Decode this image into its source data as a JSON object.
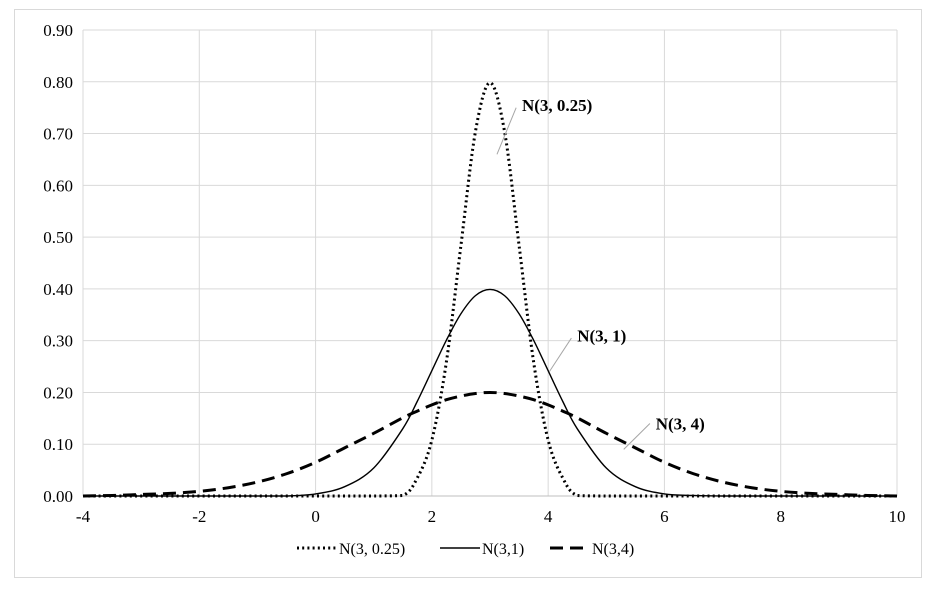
{
  "chart_data": {
    "type": "line",
    "title": "",
    "xlabel": "",
    "ylabel": "",
    "xlim": [
      -4,
      10
    ],
    "ylim": [
      0,
      0.9
    ],
    "x_ticks": [
      -4,
      -2,
      0,
      2,
      4,
      6,
      8,
      10
    ],
    "x_tick_labels": [
      "-4",
      "-2",
      "0",
      "2",
      "4",
      "6",
      "8",
      "10"
    ],
    "y_ticks": [
      0,
      0.1,
      0.2,
      0.3,
      0.4,
      0.5,
      0.6,
      0.7,
      0.8,
      0.9
    ],
    "y_tick_labels": [
      "0.00",
      "0.10",
      "0.20",
      "0.30",
      "0.40",
      "0.50",
      "0.60",
      "0.70",
      "0.80",
      "0.90"
    ],
    "grid": "vertical and horizontal",
    "legend_position": "bottom",
    "x": [
      -4.0,
      -3.5,
      -3.0,
      -2.5,
      -2.0,
      -1.5,
      -1.0,
      -0.5,
      0.0,
      0.5,
      1.0,
      1.5,
      1.75,
      2.0,
      2.25,
      2.5,
      2.75,
      3.0,
      3.25,
      3.5,
      3.75,
      4.0,
      4.25,
      4.5,
      5.0,
      5.5,
      6.0,
      6.5,
      7.0,
      7.5,
      8.0,
      8.5,
      9.0,
      9.5,
      10.0
    ],
    "series": [
      {
        "name": "N(3, 0.25)",
        "style": "dotted",
        "values": [
          0.0,
          0.0,
          0.0,
          0.0,
          0.0,
          0.0,
          0.0,
          0.0,
          0.0,
          0.0,
          0.0,
          0.001,
          0.035,
          0.108,
          0.259,
          0.484,
          0.704,
          0.798,
          0.704,
          0.484,
          0.259,
          0.108,
          0.035,
          0.001,
          0.0,
          0.0,
          0.0,
          0.0,
          0.0,
          0.0,
          0.0,
          0.0,
          0.0,
          0.0,
          0.0
        ]
      },
      {
        "name": "N(3,1)",
        "style": "solid",
        "values": [
          0.0,
          0.0,
          0.0,
          0.0,
          0.0,
          0.0,
          0.0,
          0.0,
          0.004,
          0.018,
          0.054,
          0.13,
          0.183,
          0.242,
          0.301,
          0.352,
          0.387,
          0.399,
          0.387,
          0.352,
          0.301,
          0.242,
          0.183,
          0.13,
          0.054,
          0.018,
          0.004,
          0.001,
          0.0,
          0.0,
          0.0,
          0.0,
          0.0,
          0.0,
          0.0
        ]
      },
      {
        "name": "N(3,4)",
        "style": "dashed",
        "values": [
          0.0,
          0.001,
          0.003,
          0.005,
          0.009,
          0.016,
          0.027,
          0.043,
          0.065,
          0.093,
          0.121,
          0.151,
          0.164,
          0.176,
          0.186,
          0.193,
          0.198,
          0.2,
          0.198,
          0.193,
          0.186,
          0.176,
          0.164,
          0.151,
          0.121,
          0.093,
          0.065,
          0.043,
          0.027,
          0.016,
          0.009,
          0.005,
          0.003,
          0.001,
          0.0
        ]
      }
    ],
    "annotations": [
      {
        "text": "N(3, 0.25)",
        "series": "N(3, 0.25)"
      },
      {
        "text": "N(3, 1)",
        "series": "N(3,1)"
      },
      {
        "text": "N(3, 4)",
        "series": "N(3,4)"
      }
    ]
  }
}
